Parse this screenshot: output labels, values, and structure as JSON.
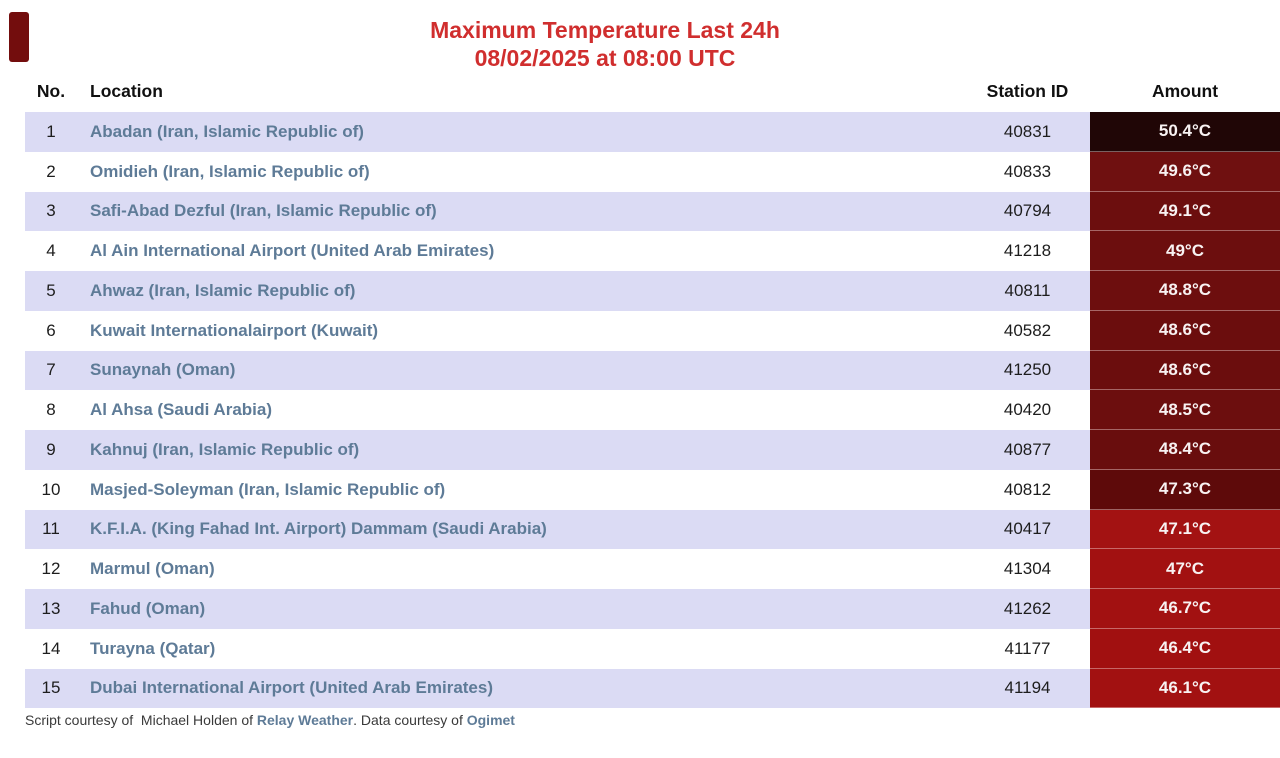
{
  "chart_data": {
    "type": "table",
    "title": "Maximum Temperature Last 24h",
    "subtitle": "08/02/2025 at 08:00 UTC",
    "columns": {
      "no": "No.",
      "location": "Location",
      "station": "Station ID",
      "amount": "Amount"
    },
    "rows": [
      {
        "no": "1",
        "location": "Abadan (Iran, Islamic Republic of)",
        "station": "40831",
        "amount": "50.4°C",
        "amount_bg": "#200606"
      },
      {
        "no": "2",
        "location": "Omidieh (Iran, Islamic Republic of)",
        "station": "40833",
        "amount": "49.6°C",
        "amount_bg": "#6f1010"
      },
      {
        "no": "3",
        "location": "Safi-Abad Dezful (Iran, Islamic Republic of)",
        "station": "40794",
        "amount": "49.1°C",
        "amount_bg": "#6c0e0e"
      },
      {
        "no": "4",
        "location": "Al Ain International Airport (United Arab Emirates)",
        "station": "41218",
        "amount": "49°C",
        "amount_bg": "#6c0e0e"
      },
      {
        "no": "5",
        "location": "Ahwaz (Iran, Islamic Republic of)",
        "station": "40811",
        "amount": "48.8°C",
        "amount_bg": "#6d0e0e"
      },
      {
        "no": "6",
        "location": "Kuwait Internationalairport (Kuwait)",
        "station": "40582",
        "amount": "48.6°C",
        "amount_bg": "#6b0d0d"
      },
      {
        "no": "7",
        "location": "Sunaynah (Oman)",
        "station": "41250",
        "amount": "48.6°C",
        "amount_bg": "#6b0d0d"
      },
      {
        "no": "8",
        "location": "Al Ahsa (Saudi Arabia)",
        "station": "40420",
        "amount": "48.5°C",
        "amount_bg": "#6c0e0e"
      },
      {
        "no": "9",
        "location": "Kahnuj (Iran, Islamic Republic of)",
        "station": "40877",
        "amount": "48.4°C",
        "amount_bg": "#690d0d"
      },
      {
        "no": "10",
        "location": "Masjed-Soleyman (Iran, Islamic Republic of)",
        "station": "40812",
        "amount": "47.3°C",
        "amount_bg": "#5e0a0a"
      },
      {
        "no": "11",
        "location": "K.F.I.A. (King Fahad Int. Airport) Dammam (Saudi Arabia)",
        "station": "40417",
        "amount": "47.1°C",
        "amount_bg": "#a31212"
      },
      {
        "no": "12",
        "location": "Marmul (Oman)",
        "station": "41304",
        "amount": "47°C",
        "amount_bg": "#a21111"
      },
      {
        "no": "13",
        "location": "Fahud (Oman)",
        "station": "41262",
        "amount": "46.7°C",
        "amount_bg": "#a21111"
      },
      {
        "no": "14",
        "location": "Turayna (Qatar)",
        "station": "41177",
        "amount": "46.4°C",
        "amount_bg": "#a11010"
      },
      {
        "no": "15",
        "location": "Dubai International Airport (United Arab Emirates)",
        "station": "41194",
        "amount": "46.1°C",
        "amount_bg": "#a21111"
      }
    ],
    "layout_hints": {
      "stripe_odd": "#dbdbf4",
      "stripe_even": "#ffffff",
      "legend": "none",
      "grid": "off"
    }
  },
  "footer": {
    "prefix": "Script courtesy of  Michael Holden of ",
    "link1": "Relay Weather",
    "middle": ". Data courtesy of ",
    "link2": "Ogimet"
  },
  "colors": {
    "title_red": "#d02e2e",
    "location_link": "#5e7b97",
    "amount_text": "#f8f2f2",
    "hottest_cell": "#200606",
    "hot_cell": "#6c0e0e",
    "warm_cell": "#a21111"
  }
}
